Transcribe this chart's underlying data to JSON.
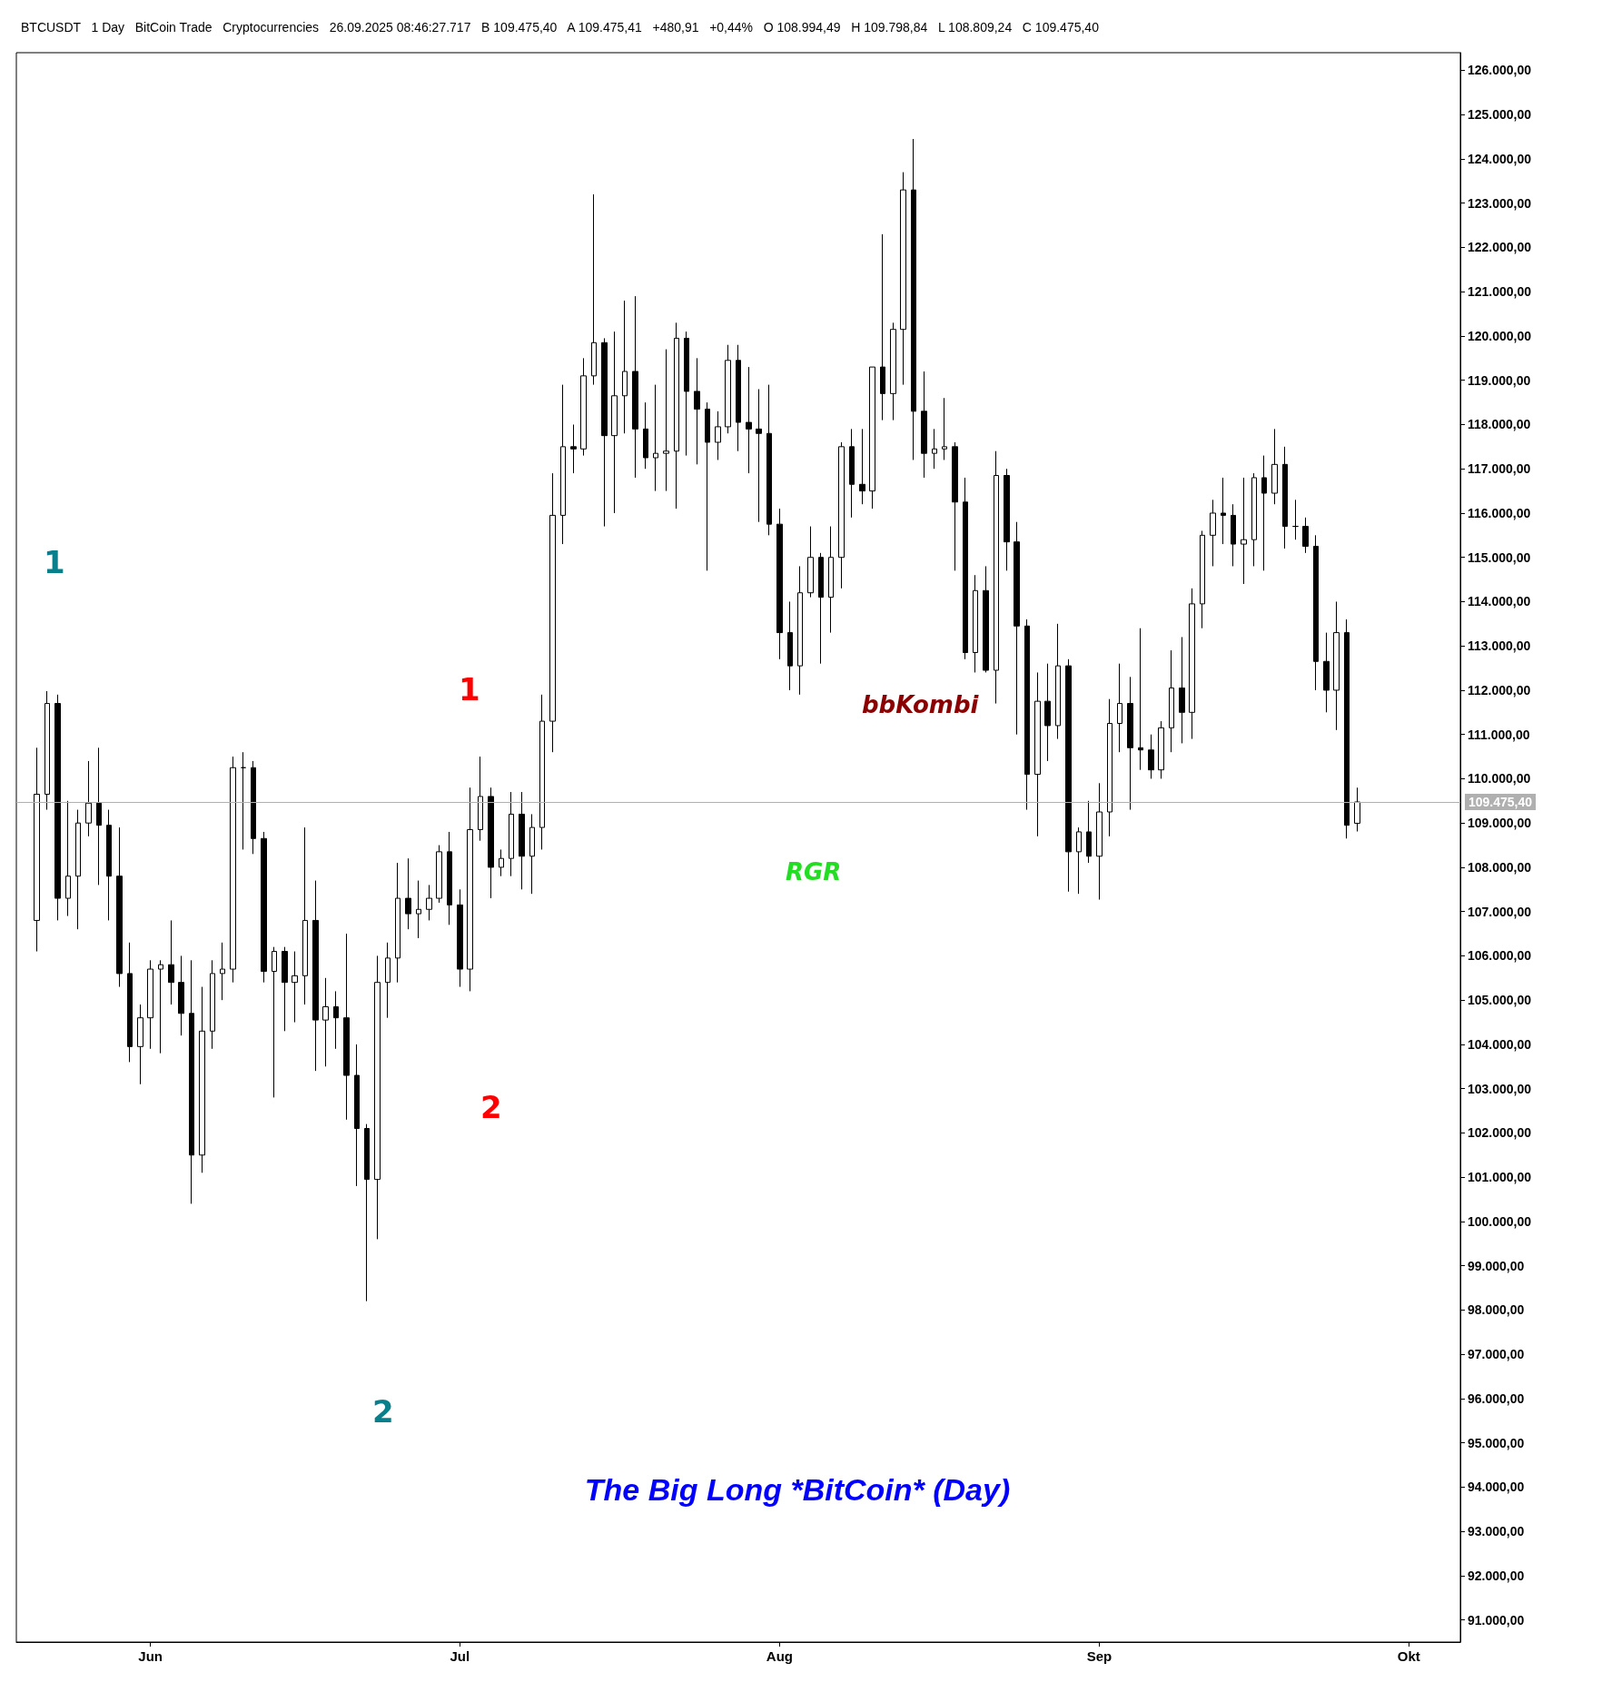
{
  "chart_data": {
    "type": "candlestick",
    "title": "The Big Long *BitCoin* (Day)",
    "subtitle": "BTCUSDT   1 Day   BitCoin Trade   Cryptocurrencies   26.09.2025 08:46:27.717   B 109.475,40   A 109.475,41   +480,91   +0,44%   O 108.994,49   H 109.798,84   L 108.809,24   C 109.475,40",
    "x": [
      "2025-05-21",
      "2025-05-22",
      "2025-05-23",
      "2025-05-24",
      "2025-05-25",
      "2025-05-26",
      "2025-05-27",
      "2025-05-28",
      "2025-05-29",
      "2025-05-30",
      "2025-05-31",
      "2025-06-01",
      "2025-06-02",
      "2025-06-03",
      "2025-06-04",
      "2025-06-05",
      "2025-06-06",
      "2025-06-07",
      "2025-06-08",
      "2025-06-09",
      "2025-06-10",
      "2025-06-11",
      "2025-06-12",
      "2025-06-13",
      "2025-06-14",
      "2025-06-15",
      "2025-06-16",
      "2025-06-17",
      "2025-06-18",
      "2025-06-19",
      "2025-06-20",
      "2025-06-21",
      "2025-06-22",
      "2025-06-23",
      "2025-06-24",
      "2025-06-25",
      "2025-06-26",
      "2025-06-27",
      "2025-06-28",
      "2025-06-29",
      "2025-06-30",
      "2025-07-01",
      "2025-07-02",
      "2025-07-03",
      "2025-07-04",
      "2025-07-05",
      "2025-07-06",
      "2025-07-07",
      "2025-07-08",
      "2025-07-09",
      "2025-07-10",
      "2025-07-11",
      "2025-07-12",
      "2025-07-13",
      "2025-07-14",
      "2025-07-15",
      "2025-07-16",
      "2025-07-17",
      "2025-07-18",
      "2025-07-19",
      "2025-07-20",
      "2025-07-21",
      "2025-07-22",
      "2025-07-23",
      "2025-07-24",
      "2025-07-25",
      "2025-07-26",
      "2025-07-27",
      "2025-07-28",
      "2025-07-29",
      "2025-07-30",
      "2025-07-31",
      "2025-08-01",
      "2025-08-02",
      "2025-08-03",
      "2025-08-04",
      "2025-08-05",
      "2025-08-06",
      "2025-08-07",
      "2025-08-08",
      "2025-08-09",
      "2025-08-10",
      "2025-08-11",
      "2025-08-12",
      "2025-08-13",
      "2025-08-14",
      "2025-08-15",
      "2025-08-16",
      "2025-08-17",
      "2025-08-18",
      "2025-08-19",
      "2025-08-20",
      "2025-08-21",
      "2025-08-22",
      "2025-08-23",
      "2025-08-24",
      "2025-08-25",
      "2025-08-26",
      "2025-08-27",
      "2025-08-28",
      "2025-08-29",
      "2025-08-30",
      "2025-08-31",
      "2025-09-01",
      "2025-09-02",
      "2025-09-03",
      "2025-09-04",
      "2025-09-05",
      "2025-09-06",
      "2025-09-07",
      "2025-09-08",
      "2025-09-09",
      "2025-09-10",
      "2025-09-11",
      "2025-09-12",
      "2025-09-13",
      "2025-09-14",
      "2025-09-15",
      "2025-09-16",
      "2025-09-17",
      "2025-09-18",
      "2025-09-19",
      "2025-09-20",
      "2025-09-21",
      "2025-09-22",
      "2025-09-23",
      "2025-09-24",
      "2025-09-25",
      "2025-09-26"
    ],
    "ohlc": [
      [
        106800,
        110700,
        106100,
        109650
      ],
      [
        109650,
        111980,
        109300,
        111700
      ],
      [
        111700,
        111900,
        106800,
        107300
      ],
      [
        107300,
        109500,
        106900,
        107800
      ],
      [
        107800,
        109300,
        106600,
        109000
      ],
      [
        109000,
        110400,
        108700,
        109450
      ],
      [
        109450,
        110700,
        107600,
        108950
      ],
      [
        108950,
        109300,
        106800,
        107800
      ],
      [
        107800,
        108900,
        105300,
        105600
      ],
      [
        105600,
        106300,
        103600,
        103950
      ],
      [
        103950,
        104900,
        103100,
        104600
      ],
      [
        104600,
        105900,
        103900,
        105700
      ],
      [
        105700,
        105900,
        103800,
        105800
      ],
      [
        105800,
        106800,
        104900,
        105400
      ],
      [
        105400,
        106000,
        104200,
        104700
      ],
      [
        104700,
        105900,
        100400,
        101500
      ],
      [
        101500,
        105300,
        101100,
        104300
      ],
      [
        104300,
        105900,
        103900,
        105600
      ],
      [
        105600,
        106300,
        105000,
        105700
      ],
      [
        105700,
        110500,
        105400,
        110250
      ],
      [
        110250,
        110600,
        108400,
        110250
      ],
      [
        110250,
        110400,
        108300,
        108650
      ],
      [
        108650,
        108800,
        105400,
        105650
      ],
      [
        105650,
        106200,
        102800,
        106100
      ],
      [
        106100,
        106200,
        104300,
        105400
      ],
      [
        105400,
        106100,
        104500,
        105550
      ],
      [
        105550,
        108900,
        104900,
        106800
      ],
      [
        106800,
        107700,
        103400,
        104550
      ],
      [
        104550,
        105500,
        103500,
        104850
      ],
      [
        104850,
        105200,
        103900,
        104600
      ],
      [
        104600,
        106500,
        102300,
        103300
      ],
      [
        103300,
        104000,
        100800,
        102100
      ],
      [
        102100,
        102200,
        98200,
        100950
      ],
      [
        100950,
        106000,
        99600,
        105400
      ],
      [
        105400,
        106300,
        104600,
        105950
      ],
      [
        105950,
        108100,
        105400,
        107300
      ],
      [
        107300,
        108200,
        106600,
        106950
      ],
      [
        106950,
        107700,
        106400,
        107050
      ],
      [
        107050,
        107600,
        106800,
        107300
      ],
      [
        107300,
        108500,
        107200,
        108350
      ],
      [
        108350,
        108800,
        106700,
        107150
      ],
      [
        107150,
        107500,
        105300,
        105700
      ],
      [
        105700,
        109800,
        105200,
        108850
      ],
      [
        108850,
        110500,
        108600,
        109600
      ],
      [
        109600,
        109800,
        107300,
        108000
      ],
      [
        108000,
        108400,
        107800,
        108200
      ],
      [
        108200,
        109700,
        107800,
        109200
      ],
      [
        109200,
        109700,
        107500,
        108250
      ],
      [
        108250,
        109200,
        107400,
        108900
      ],
      [
        108900,
        111900,
        108400,
        111300
      ],
      [
        111300,
        116900,
        110600,
        115950
      ],
      [
        115950,
        118900,
        115300,
        117500
      ],
      [
        117500,
        118000,
        116900,
        117450
      ],
      [
        117450,
        119500,
        117300,
        119100
      ],
      [
        119100,
        123200,
        118900,
        119850
      ],
      [
        119850,
        119950,
        115700,
        117750
      ],
      [
        117750,
        120100,
        116000,
        118650
      ],
      [
        118650,
        120800,
        117800,
        119200
      ],
      [
        119200,
        120900,
        116800,
        117900
      ],
      [
        117900,
        118500,
        117000,
        117250
      ],
      [
        117250,
        118900,
        116500,
        117350
      ],
      [
        117350,
        119700,
        116500,
        117400
      ],
      [
        117400,
        120300,
        116100,
        119950
      ],
      [
        119950,
        120100,
        117300,
        118750
      ],
      [
        118750,
        119500,
        117100,
        118350
      ],
      [
        118350,
        118500,
        114700,
        117600
      ],
      [
        117600,
        118300,
        117200,
        117950
      ],
      [
        117950,
        119800,
        117800,
        119450
      ],
      [
        119450,
        119800,
        117400,
        118050
      ],
      [
        118050,
        119300,
        116900,
        117900
      ],
      [
        117900,
        118800,
        115800,
        117800
      ],
      [
        117800,
        118900,
        115500,
        115750
      ],
      [
        115750,
        116100,
        112700,
        113300
      ],
      [
        113300,
        114000,
        112000,
        112550
      ],
      [
        112550,
        114800,
        111900,
        114200
      ],
      [
        114200,
        115700,
        114100,
        115000
      ],
      [
        115000,
        115100,
        112600,
        114100
      ],
      [
        114100,
        115700,
        113300,
        115000
      ],
      [
        115000,
        117600,
        114300,
        117500
      ],
      [
        117500,
        117900,
        115900,
        116650
      ],
      [
        116650,
        117900,
        116200,
        116500
      ],
      [
        116500,
        119300,
        116100,
        119300
      ],
      [
        119300,
        122300,
        118100,
        118700
      ],
      [
        118700,
        120300,
        118100,
        120150
      ],
      [
        120150,
        123700,
        118900,
        123300
      ],
      [
        123300,
        124450,
        117200,
        118300
      ],
      [
        118300,
        119200,
        116800,
        117350
      ],
      [
        117350,
        117900,
        117000,
        117450
      ],
      [
        117450,
        118600,
        117200,
        117500
      ],
      [
        117500,
        117600,
        114700,
        116250
      ],
      [
        116250,
        116800,
        112700,
        112850
      ],
      [
        112850,
        114600,
        112400,
        114250
      ],
      [
        114250,
        114800,
        112400,
        112450
      ],
      [
        112450,
        117400,
        111700,
        116850
      ],
      [
        116850,
        117000,
        114700,
        115350
      ],
      [
        115350,
        115800,
        111000,
        113450
      ],
      [
        113450,
        113600,
        109300,
        110100
      ],
      [
        110100,
        112400,
        108700,
        111750
      ],
      [
        111750,
        112600,
        110400,
        111200
      ],
      [
        111200,
        113500,
        110900,
        112550
      ],
      [
        112550,
        112700,
        107450,
        108350
      ],
      [
        108350,
        108900,
        107400,
        108800
      ],
      [
        108800,
        109500,
        108100,
        108250
      ],
      [
        108250,
        109900,
        107270,
        109250
      ],
      [
        109250,
        111800,
        108700,
        111250
      ],
      [
        111250,
        112600,
        110600,
        111700
      ],
      [
        111700,
        112300,
        109300,
        110700
      ],
      [
        110700,
        113400,
        110200,
        110650
      ],
      [
        110650,
        111000,
        110000,
        110200
      ],
      [
        110200,
        111300,
        110000,
        111150
      ],
      [
        111150,
        112900,
        110600,
        112050
      ],
      [
        112050,
        113200,
        110800,
        111500
      ],
      [
        111500,
        114300,
        110900,
        113950
      ],
      [
        113950,
        115600,
        113400,
        115500
      ],
      [
        115500,
        116300,
        114800,
        116000
      ],
      [
        116000,
        116800,
        115300,
        115950
      ],
      [
        115950,
        116200,
        114800,
        115300
      ],
      [
        115300,
        116800,
        114400,
        115400
      ],
      [
        115400,
        116900,
        114800,
        116800
      ],
      [
        116800,
        117300,
        114700,
        116450
      ],
      [
        116450,
        117900,
        116200,
        117100
      ],
      [
        117100,
        117500,
        115200,
        115700
      ],
      [
        115700,
        116300,
        115400,
        115700
      ],
      [
        115700,
        115900,
        115100,
        115250
      ],
      [
        115250,
        115500,
        112000,
        112650
      ],
      [
        112650,
        113300,
        111500,
        112000
      ],
      [
        112000,
        114000,
        111100,
        113300
      ],
      [
        113300,
        113600,
        108650,
        108950
      ],
      [
        108994.49,
        109798.84,
        108809.24,
        109475.4
      ]
    ],
    "xlim": [
      "2025-05-19",
      "2025-10-06"
    ],
    "xticks": [
      {
        "value": "2025-06-01",
        "label": "Jun"
      },
      {
        "value": "2025-07-01",
        "label": "Jul"
      },
      {
        "value": "2025-08-01",
        "label": "Aug"
      },
      {
        "value": "2025-09-01",
        "label": "Sep"
      },
      {
        "value": "2025-10-01",
        "label": "Okt"
      }
    ],
    "ylim": [
      90500,
      126400
    ],
    "yticks": [
      {
        "value": 91000,
        "label": "91.000,00"
      },
      {
        "value": 92000,
        "label": "92.000,00"
      },
      {
        "value": 93000,
        "label": "93.000,00"
      },
      {
        "value": 94000,
        "label": "94.000,00"
      },
      {
        "value": 95000,
        "label": "95.000,00"
      },
      {
        "value": 96000,
        "label": "96.000,00"
      },
      {
        "value": 97000,
        "label": "97.000,00"
      },
      {
        "value": 98000,
        "label": "98.000,00"
      },
      {
        "value": 99000,
        "label": "99.000,00"
      },
      {
        "value": 100000,
        "label": "100.000,00"
      },
      {
        "value": 101000,
        "label": "101.000,00"
      },
      {
        "value": 102000,
        "label": "102.000,00"
      },
      {
        "value": 103000,
        "label": "103.000,00"
      },
      {
        "value": 104000,
        "label": "104.000,00"
      },
      {
        "value": 105000,
        "label": "105.000,00"
      },
      {
        "value": 106000,
        "label": "106.000,00"
      },
      {
        "value": 107000,
        "label": "107.000,00"
      },
      {
        "value": 108000,
        "label": "108.000,00"
      },
      {
        "value": 109000,
        "label": "109.000,00"
      },
      {
        "value": 110000,
        "label": "110.000,00"
      },
      {
        "value": 111000,
        "label": "111.000,00"
      },
      {
        "value": 112000,
        "label": "112.000,00"
      },
      {
        "value": 113000,
        "label": "113.000,00"
      },
      {
        "value": 114000,
        "label": "114.000,00"
      },
      {
        "value": 115000,
        "label": "115.000,00"
      },
      {
        "value": 116000,
        "label": "116.000,00"
      },
      {
        "value": 117000,
        "label": "117.000,00"
      },
      {
        "value": 118000,
        "label": "118.000,00"
      },
      {
        "value": 119000,
        "label": "119.000,00"
      },
      {
        "value": 120000,
        "label": "120.000,00"
      },
      {
        "value": 121000,
        "label": "121.000,00"
      },
      {
        "value": 122000,
        "label": "122.000,00"
      },
      {
        "value": 123000,
        "label": "123.000,00"
      },
      {
        "value": 124000,
        "label": "124.000,00"
      },
      {
        "value": 125000,
        "label": "125.000,00"
      },
      {
        "value": 126000,
        "label": "126.000,00"
      }
    ],
    "ref_lines": [
      {
        "axis": "y",
        "value": 109475.4,
        "label": "109.475,40",
        "color": "#b0b0b0"
      }
    ],
    "annotations": [
      "1",
      "2",
      "1",
      "2",
      "bbKombi",
      "RGR"
    ],
    "grid": false
  }
}
